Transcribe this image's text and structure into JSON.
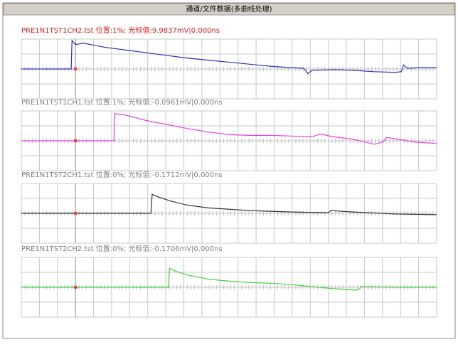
{
  "window": {
    "title": "通道/文件数据(多曲线处理)"
  },
  "chart_data": [
    {
      "type": "line",
      "title": "PRE1N1TST1CH2.tst  位置:1%;  光标值:9.9837mV|0.000ns",
      "title_color": "#e02020",
      "color": "#3030b0",
      "x": [
        0,
        12,
        12.2,
        13,
        15,
        20,
        25,
        30,
        35,
        40,
        45,
        50,
        55,
        60,
        65,
        68,
        69,
        70,
        75,
        80,
        85,
        90,
        91.5,
        92,
        93,
        96,
        100
      ],
      "values": [
        0,
        0,
        2.1,
        1.8,
        1.9,
        1.6,
        1.4,
        1.2,
        1.0,
        0.8,
        0.65,
        0.5,
        0.35,
        0.2,
        0.1,
        0.05,
        -0.35,
        -0.1,
        -0.05,
        -0.1,
        -0.2,
        -0.25,
        -0.2,
        0.3,
        0.05,
        0.1,
        0.1
      ],
      "xlim": [
        0,
        100
      ],
      "ylim": [
        -2.2,
        2.2
      ]
    },
    {
      "type": "line",
      "title": "PRE1N1TST1CH1.tst  位置:1%;  光标值:-0.0961mV|0.000ns",
      "title_color": "#808080",
      "color": "#e040e0",
      "x": [
        0,
        22.3,
        22.5,
        25,
        30,
        35,
        40,
        45,
        50,
        55,
        60,
        65,
        70,
        72,
        75,
        80,
        85,
        87,
        88,
        90,
        95,
        100
      ],
      "values": [
        0,
        0,
        2.0,
        1.9,
        1.5,
        1.2,
        0.9,
        0.65,
        0.45,
        0.4,
        0.4,
        0.35,
        0.3,
        0.5,
        0.3,
        0.1,
        -0.25,
        -0.1,
        0.25,
        0.15,
        -0.1,
        -0.2
      ],
      "xlim": [
        0,
        100
      ],
      "ylim": [
        -2.2,
        2.2
      ]
    },
    {
      "type": "line",
      "title": "PRE1N1TST2CH1.tst  位置:0%;  光标值:-0.1712mV|0.000ns",
      "title_color": "#808080",
      "color": "#303030",
      "x": [
        0,
        31.2,
        31.5,
        33,
        36,
        40,
        45,
        50,
        55,
        60,
        65,
        74,
        74.5,
        80,
        90,
        100
      ],
      "values": [
        0,
        0,
        1.4,
        1.2,
        0.9,
        0.6,
        0.4,
        0.3,
        0.2,
        0.15,
        0.1,
        0.05,
        0.2,
        0.1,
        -0.05,
        -0.1
      ],
      "xlim": [
        0,
        100
      ],
      "ylim": [
        -2.2,
        2.2
      ]
    },
    {
      "type": "line",
      "title": "PRE1N1TST2CH2.tst  位置:0%;  光标值:-0.1706mV|0.000ns",
      "title_color": "#808080",
      "color": "#40d040",
      "x": [
        0,
        35.4,
        35.7,
        37,
        40,
        45,
        50,
        55,
        60,
        65,
        70,
        75,
        80,
        81,
        82,
        90,
        100
      ],
      "values": [
        0,
        0,
        1.4,
        1.2,
        0.9,
        0.6,
        0.45,
        0.35,
        0.3,
        0.2,
        0.05,
        -0.1,
        -0.2,
        -0.2,
        0.05,
        0,
        0
      ],
      "xlim": [
        0,
        100
      ],
      "ylim": [
        -2.2,
        2.2
      ]
    }
  ]
}
